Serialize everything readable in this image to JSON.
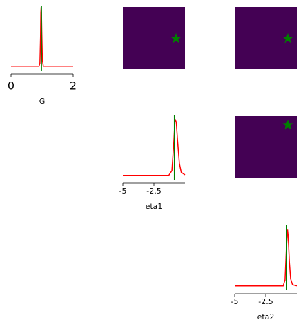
{
  "chart_data": [
    {
      "type": "line",
      "xlabel": "G",
      "xlim": [
        0,
        2
      ],
      "xticks": [
        0,
        2
      ],
      "ylim": [
        -0.05,
        1.0
      ],
      "x": [
        0,
        0.9,
        0.93,
        0.95,
        0.96,
        0.97,
        0.98,
        0.99,
        1.01,
        1.04,
        2
      ],
      "series": [
        {
          "color": "#ff0000",
          "values": [
            0,
            0,
            0.05,
            0.5,
            0.9,
            1.0,
            0.9,
            0.6,
            0.1,
            0,
            0
          ]
        }
      ],
      "truth": 0.98,
      "truth_color": "#008000"
    },
    {
      "type": "scatter",
      "xlim": [
        -5,
        0
      ],
      "ylim": [
        0,
        2
      ],
      "background": "#440154",
      "x": [
        -0.72
      ],
      "series": [
        {
          "color": "#008000",
          "values": [
            0.98
          ]
        }
      ]
    },
    {
      "type": "scatter",
      "xlim": [
        -5,
        0
      ],
      "ylim": [
        0,
        2
      ],
      "background": "#440154",
      "x": [
        -0.72
      ],
      "series": [
        {
          "color": "#008000",
          "values": [
            0.98
          ]
        }
      ]
    },
    {
      "type": "line",
      "xlabel": "eta1",
      "xlim": [
        -5,
        0
      ],
      "xticks": [
        -5,
        -2.5
      ],
      "ylim": [
        -0.05,
        1.0
      ],
      "x": [
        -5,
        -1.3,
        -1.05,
        -0.9,
        -0.8,
        -0.7,
        -0.6,
        -0.45,
        -0.3,
        0
      ],
      "series": [
        {
          "color": "#ff0000",
          "values": [
            0,
            0,
            0.08,
            0.55,
            0.95,
            0.9,
            0.6,
            0.2,
            0.05,
            0.01
          ]
        }
      ],
      "truth": -0.85,
      "truth_color": "#008000"
    },
    {
      "type": "scatter",
      "xlim": [
        -5,
        0
      ],
      "ylim": [
        -5,
        0
      ],
      "background": "#440154",
      "x": [
        -0.72
      ],
      "series": [
        {
          "color": "#008000",
          "values": [
            -0.72
          ]
        }
      ]
    },
    {
      "type": "line",
      "xlabel": "eta2",
      "xlim": [
        -5,
        0
      ],
      "xticks": [
        -5,
        -2.5
      ],
      "ylim": [
        -0.05,
        1.0
      ],
      "x": [
        -5,
        -1.1,
        -0.95,
        -0.85,
        -0.75,
        -0.7,
        -0.6,
        -0.5,
        -0.35,
        0
      ],
      "series": [
        {
          "color": "#ff0000",
          "values": [
            0,
            0,
            0.1,
            0.6,
            0.95,
            0.85,
            0.4,
            0.12,
            0.02,
            0
          ]
        }
      ],
      "truth": -0.82,
      "truth_color": "#008000"
    }
  ]
}
